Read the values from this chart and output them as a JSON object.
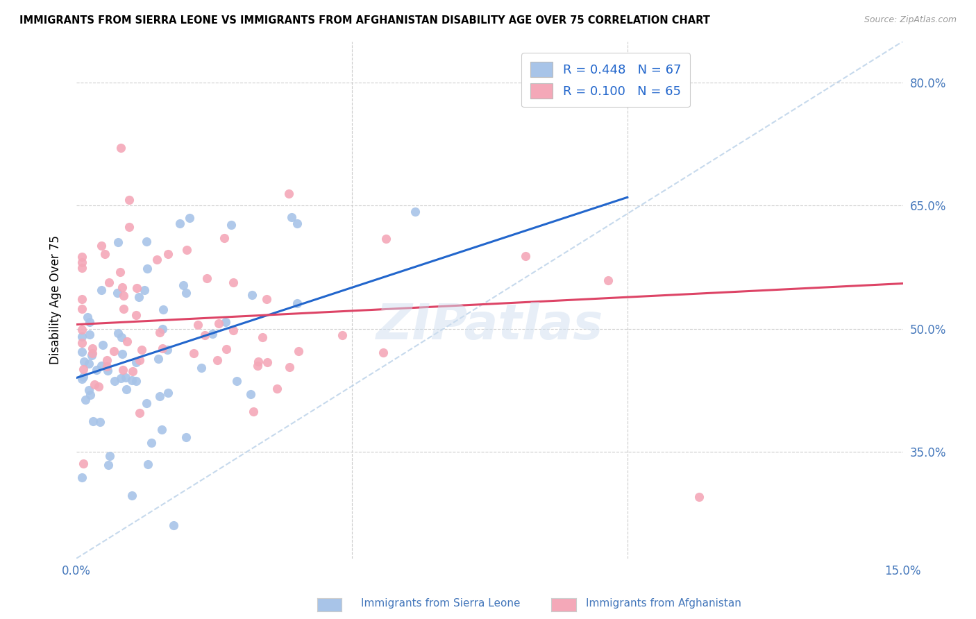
{
  "title": "IMMIGRANTS FROM SIERRA LEONE VS IMMIGRANTS FROM AFGHANISTAN DISABILITY AGE OVER 75 CORRELATION CHART",
  "source": "Source: ZipAtlas.com",
  "ylabel": "Disability Age Over 75",
  "color_blue": "#a8c4e8",
  "color_pink": "#f4a8b8",
  "line_blue": "#2266cc",
  "line_pink": "#dd4466",
  "line_dashed_color": "#b8d0e8",
  "text_color": "#4477bb",
  "legend_text_color": "#2266cc",
  "xlim": [
    0.0,
    0.15
  ],
  "ylim": [
    0.22,
    0.85
  ],
  "ytick_vals": [
    0.35,
    0.5,
    0.65,
    0.8
  ],
  "ytick_labels": [
    "35.0%",
    "50.0%",
    "65.0%",
    "80.0%"
  ],
  "xtick_vals": [
    0.0,
    0.15
  ],
  "xtick_labels": [
    "0.0%",
    "15.0%"
  ],
  "blue_line_x": [
    0.0,
    0.1
  ],
  "blue_line_y": [
    0.44,
    0.66
  ],
  "pink_line_x": [
    0.0,
    0.15
  ],
  "pink_line_y": [
    0.505,
    0.555
  ],
  "dashed_line_x": [
    0.0,
    0.15
  ],
  "dashed_line_y": [
    0.22,
    0.85
  ],
  "watermark": "ZIPatlas",
  "legend_r1": "R = 0.448",
  "legend_n1": "N = 67",
  "legend_r2": "R = 0.100",
  "legend_n2": "N = 65",
  "bottom_label1": "Immigrants from Sierra Leone",
  "bottom_label2": "Immigrants from Afghanistan"
}
